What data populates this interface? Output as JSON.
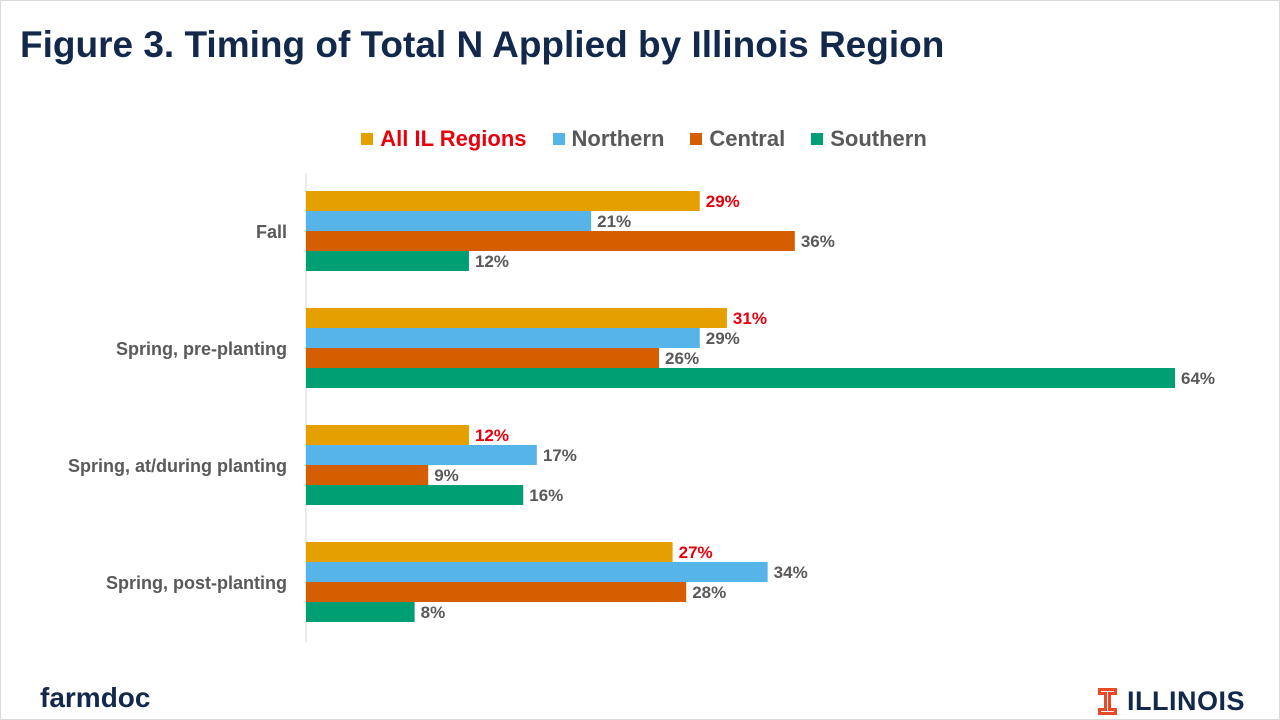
{
  "title": "Figure 3. Timing of Total N Applied by Illinois Region",
  "footer": {
    "left_brand": "farmdoc",
    "right_brand": "ILLINOIS"
  },
  "colors": {
    "all_il": "#e5a000",
    "northern": "#56b4e9",
    "central": "#d55e00",
    "southern": "#009e73",
    "highlight_text": "#e8000c",
    "label_text": "#595959",
    "title_text": "#13294b",
    "logo": "#e84a27"
  },
  "chart_data": {
    "type": "bar",
    "orientation": "horizontal",
    "categories": [
      "Fall",
      "Spring, pre-planting",
      "Spring, at/during planting",
      "Spring, post-planting"
    ],
    "series": [
      {
        "name": "All IL Regions",
        "values": [
          29,
          31,
          12,
          27
        ],
        "labels": [
          "29%",
          "31%",
          "12%",
          "27%"
        ]
      },
      {
        "name": "Northern",
        "values": [
          21,
          29,
          17,
          34
        ],
        "labels": [
          "21%",
          "29%",
          "17%",
          "34%"
        ]
      },
      {
        "name": "Central",
        "values": [
          36,
          26,
          9,
          28
        ],
        "labels": [
          "36%",
          "26%",
          "9%",
          "28%"
        ]
      },
      {
        "name": "Southern",
        "values": [
          12,
          64,
          16,
          8
        ],
        "labels": [
          "12%",
          "64%",
          "16%",
          "8%"
        ]
      }
    ],
    "xlim": [
      0,
      64
    ],
    "legend": "top",
    "grid": false
  }
}
